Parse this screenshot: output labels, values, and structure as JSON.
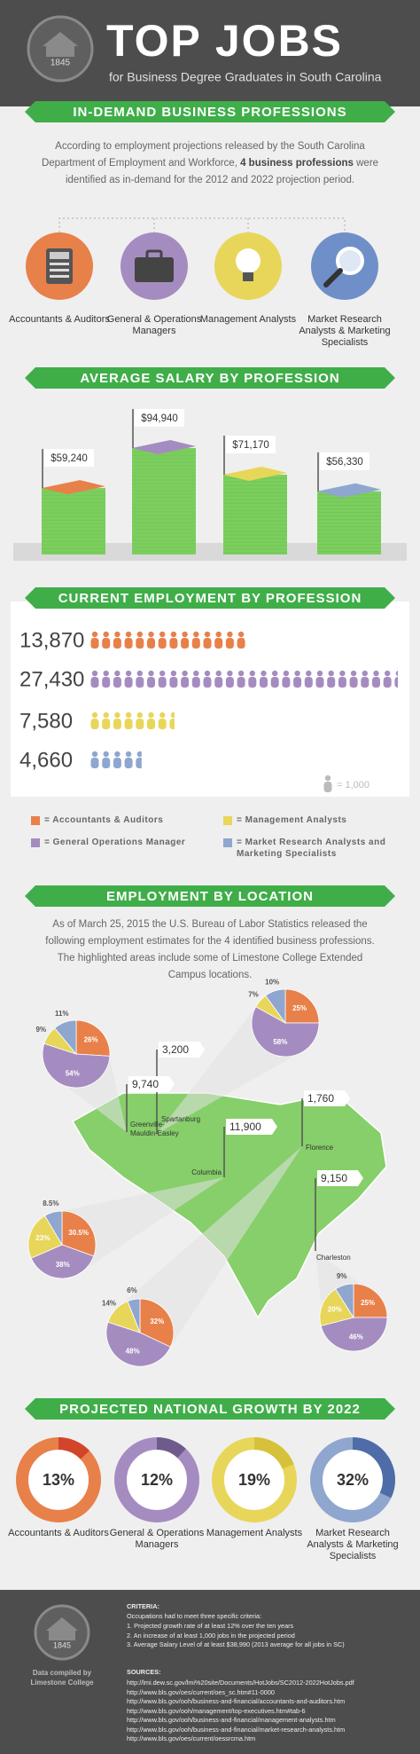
{
  "header": {
    "logo": "1845",
    "title": "TOP JOBS",
    "subtitle": "for Business Degree Graduates in South Carolina"
  },
  "professions": {
    "heading": "IN-DEMAND BUSINESS PROFESSIONS",
    "intro": [
      "According to employment projections released by the South Carolina Department of Employment and Workforce, ",
      "4 business professions",
      " were identified as in-demand for the 2012 and 2022 projection period."
    ],
    "items": [
      "Accountants & Auditors",
      "General & Operations Managers",
      "Management Analysts",
      "Market Research Analysts & Marketing Specialists"
    ]
  },
  "chart_data": [
    {
      "type": "bar",
      "title": "AVERAGE SALARY BY PROFESSION",
      "values": [
        59240,
        94940,
        71170,
        56330
      ],
      "value_labels": [
        "$59,240",
        "$94,940",
        "$71,170",
        "$56,330"
      ],
      "colors": [
        "#e8804a",
        "#a58cc0",
        "#e8d65a",
        "#8fa6cf"
      ],
      "body_color": "#7ccf5e"
    },
    {
      "type": "pictograph",
      "title": "CURRENT EMPLOYMENT BY PROFESSION",
      "values": [
        13870,
        27430,
        7580,
        4660
      ],
      "value_labels": [
        "13,870",
        "27,430",
        "7,580",
        "4,660"
      ],
      "colors": [
        "#e8804a",
        "#a58cc0",
        "#e8d65a",
        "#8fa6cf"
      ],
      "unit": 1000,
      "unit_label": "= 1,000"
    },
    {
      "type": "map",
      "title": "EMPLOYMENT BY LOCATION",
      "intro": "As of March 25, 2015 the U.S. Bureau of Labor Statistics released the following employment estimates for the 4 identified business professions. The highlighted areas include some of Limestone College Extended Campus locations.",
      "colors": [
        "#e8804a",
        "#a58cc0",
        "#e8d65a",
        "#8fa6cf"
      ],
      "cities": [
        {
          "name": "Spartanburg",
          "value": 3200,
          "value_label": "3,200",
          "shares": [
            25,
            58,
            7,
            10
          ],
          "share_labels": [
            "25%",
            "58%",
            "7%",
            "10%"
          ]
        },
        {
          "name": "Greenville-Mauldin-Easley",
          "value": 9740,
          "value_label": "9,740",
          "shares": [
            26,
            54,
            9,
            11
          ],
          "share_labels": [
            "26%",
            "54%",
            "9%",
            "11%"
          ]
        },
        {
          "name": "Columbia",
          "value": 11900,
          "value_label": "11,900",
          "shares": [
            30.5,
            38,
            23,
            8.5
          ],
          "share_labels": [
            "30.5%",
            "38%",
            "23%",
            "8.5%"
          ]
        },
        {
          "name": "Florence",
          "value": 1760,
          "value_label": "1,760",
          "shares": [
            32,
            48,
            14,
            6
          ],
          "share_labels": [
            "32%",
            "48%",
            "14%",
            "6%"
          ]
        },
        {
          "name": "Charleston",
          "value": 9150,
          "value_label": "9,150",
          "shares": [
            25,
            46,
            20,
            9
          ],
          "share_labels": [
            "25%",
            "46%",
            "20%",
            "9%"
          ]
        }
      ]
    },
    {
      "type": "donut",
      "title": "PROJECTED NATIONAL GROWTH BY 2022",
      "categories": [
        "Accountants & Auditors",
        "General & Operations Managers",
        "Management Analysts",
        "Market Research Analysts & Marketing Specialists"
      ],
      "values": [
        13,
        12,
        19,
        32
      ],
      "value_labels": [
        "13%",
        "12%",
        "19%",
        "32%"
      ],
      "colors": [
        "#e8804a",
        "#a58cc0",
        "#e8d65a",
        "#8fa6cf"
      ],
      "arc_colors": [
        "#d2452b",
        "#6f5a8c",
        "#d6c23a",
        "#4e6da8"
      ]
    }
  ],
  "legend": {
    "items": [
      {
        "label": "= Accountants & Auditors",
        "color": "#e8804a"
      },
      {
        "label": "= General Operations Manager",
        "color": "#a58cc0"
      },
      {
        "label": "= Management Analysts",
        "color": "#e8d65a"
      },
      {
        "label": "= Market Research Analysts and Marketing Specialists",
        "color": "#8fa6cf"
      }
    ]
  },
  "footer": {
    "logo": "1845",
    "credit": "Data compiled by Limestone College",
    "criteria": {
      "heading": "CRITERIA:",
      "intro": "Occupations had to meet three specific criteria:",
      "items": [
        "1. Projected growth rate of at least 12% over the ten years",
        "2. An increase of at least 1,000 jobs in the projected period",
        "3. Average Salary Level of at least $38,990 (2013 average for all jobs in SC)"
      ]
    },
    "sources": {
      "heading": "SOURCES:",
      "items": [
        "http://lmi.dew.sc.gov/lmi%20site/Documents/HotJobs/SC2012-2022HotJobs.pdf",
        "http://www.bls.gov/oes/current/oes_sc.htm#11-0000",
        "http://www.bls.gov/ooh/business-and-financial/accountants-and-auditors.htm",
        "http://www.bls.gov/ooh/management/top-executives.htm#tab-6",
        "http://www.bls.gov/ooh/business-and-financial/management-analysts.htm",
        "http://www.bls.gov/ooh/business-and-financial/market-research-analysts.htm",
        "http://www.bls.gov/oes/current/oessrcma.htm"
      ]
    }
  }
}
